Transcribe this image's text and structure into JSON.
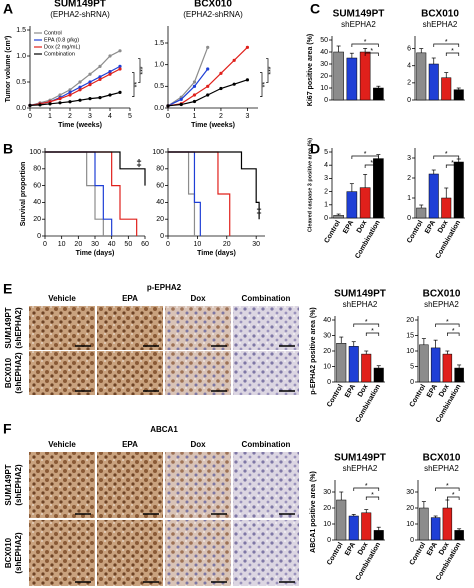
{
  "panels": [
    "A",
    "B",
    "C",
    "D",
    "E",
    "F"
  ],
  "images": [
    {
      "title": "p-EPHA2",
      "columns": [
        "Vehicle",
        "EPA",
        "Dox",
        "Combination"
      ],
      "rows": [
        {
          "name": "SUM149PT",
          "sub": "(shEPHA2)"
        },
        {
          "name": "BCX010",
          "sub": "(shEPHA2)"
        }
      ]
    },
    {
      "title": "ABCA1",
      "columns": [
        "Vehicle",
        "EPA",
        "Dox",
        "Combination"
      ],
      "rows": [
        {
          "name": "SUM149PT",
          "sub": "(shEPHA2)"
        },
        {
          "name": "BCX010",
          "sub": "(shEPHA2)"
        }
      ]
    }
  ],
  "chart_data": [
    {
      "type": "line",
      "title": "SUM149PT",
      "subtitle": "(EPHA2-shRNA)",
      "xlabel": "Time (weeks)",
      "ylabel": "Tumor volume (cm³)",
      "x": [
        0,
        0.5,
        1,
        1.5,
        2,
        2.5,
        3,
        3.5,
        4,
        4.5
      ],
      "series": [
        {
          "name": "Control",
          "color": "#8c8c8c",
          "values": [
            0.05,
            0.1,
            0.15,
            0.25,
            0.35,
            0.5,
            0.65,
            0.8,
            1.0,
            1.1
          ]
        },
        {
          "name": "EPA (0.8 g/kg)",
          "color": "#1f3fd6",
          "values": [
            0.05,
            0.08,
            0.12,
            0.2,
            0.3,
            0.4,
            0.5,
            0.6,
            0.7,
            0.8
          ]
        },
        {
          "name": "Dox (2 mg/mL)",
          "color": "#e0201b",
          "values": [
            0.05,
            0.08,
            0.12,
            0.18,
            0.25,
            0.35,
            0.45,
            0.55,
            0.65,
            0.75
          ]
        },
        {
          "name": "Combination",
          "color": "#000000",
          "values": [
            0.05,
            0.06,
            0.08,
            0.1,
            0.12,
            0.15,
            0.18,
            0.2,
            0.25,
            0.3
          ]
        }
      ],
      "xlim": [
        0,
        5
      ],
      "xticks": [
        0,
        1,
        2,
        3,
        4,
        5
      ],
      "ylim": [
        0,
        1.5
      ],
      "yticks": [
        {
          "value": 0,
          "label": "0.0"
        },
        0.5,
        {
          "value": 1,
          "label": "1.0"
        },
        1.5
      ],
      "annotations": [
        "**",
        "***"
      ]
    },
    {
      "type": "line",
      "title": "BCX010",
      "subtitle": "(EPHA2-shRNA)",
      "xlabel": "Time (weeks)",
      "x": [
        0,
        0.5,
        1,
        1.5,
        2,
        2.5,
        3
      ],
      "series": [
        {
          "color": "#8c8c8c",
          "values": [
            0.05,
            0.25,
            0.6,
            1.4,
            null,
            null,
            null
          ]
        },
        {
          "color": "#1f3fd6",
          "values": [
            0.05,
            0.2,
            0.5,
            0.9,
            null,
            null,
            null
          ]
        },
        {
          "color": "#e0201b",
          "values": [
            0.05,
            0.1,
            0.3,
            0.5,
            0.8,
            1.1,
            1.4
          ]
        },
        {
          "color": "#000000",
          "values": [
            0.05,
            0.08,
            0.15,
            0.3,
            0.45,
            0.55,
            0.65
          ]
        }
      ],
      "xlim": [
        0,
        3.4
      ],
      "xticks": [
        0,
        1,
        2,
        3
      ],
      "ylim": [
        0,
        1.8
      ],
      "yticks": [
        {
          "value": 0,
          "label": "0.0"
        },
        0.5,
        {
          "value": 1,
          "label": "1.0"
        },
        1.5
      ],
      "annotations": [
        "**",
        "***"
      ]
    },
    {
      "type": "step",
      "xlabel": "Time (days)",
      "ylabel": "Survival proportion",
      "series": [
        {
          "color": "#8c8c8c",
          "x": [
            0,
            20,
            25,
            30,
            35
          ],
          "values": [
            100,
            100,
            60,
            20,
            0
          ]
        },
        {
          "color": "#1f3fd6",
          "x": [
            0,
            25,
            30,
            35,
            40
          ],
          "values": [
            100,
            100,
            60,
            20,
            0
          ]
        },
        {
          "color": "#e0201b",
          "x": [
            0,
            30,
            40,
            45,
            55
          ],
          "values": [
            100,
            100,
            60,
            20,
            0
          ]
        },
        {
          "color": "#000000",
          "x": [
            0,
            35,
            45,
            60
          ],
          "values": [
            100,
            100,
            80,
            60
          ]
        }
      ],
      "xlim": [
        0,
        60
      ],
      "xticks": [
        0,
        10,
        20,
        30,
        40,
        50,
        60
      ],
      "ylim": [
        0,
        100
      ],
      "yticks": [
        0,
        20,
        40,
        60,
        80,
        100
      ],
      "annotations": [
        "‡"
      ]
    },
    {
      "type": "step",
      "xlabel": "Time (days)",
      "series": [
        {
          "color": "#8c8c8c",
          "x": [
            0,
            5,
            7,
            9
          ],
          "values": [
            100,
            100,
            50,
            0
          ]
        },
        {
          "color": "#1f3fd6",
          "x": [
            0,
            6,
            9,
            11
          ],
          "values": [
            100,
            100,
            40,
            0
          ]
        },
        {
          "color": "#e0201b",
          "x": [
            0,
            11,
            17,
            21
          ],
          "values": [
            100,
            100,
            50,
            0
          ]
        },
        {
          "color": "#000000",
          "x": [
            0,
            20,
            25,
            30,
            31
          ],
          "values": [
            100,
            100,
            80,
            40,
            20
          ]
        }
      ],
      "xlim": [
        0,
        33
      ],
      "xticks": [
        0,
        10,
        20,
        30
      ],
      "ylim": [
        0,
        100
      ],
      "yticks": [
        0,
        20,
        40,
        60,
        80,
        100
      ],
      "annotations": [
        "‡"
      ]
    },
    {
      "type": "bar",
      "title": "SUM149PT",
      "subtitle": "shEPHA2",
      "ylabel": "Ki67 positive area (%)",
      "values": [
        40,
        35,
        40,
        10
      ],
      "errors": [
        5,
        4,
        3,
        1.5
      ],
      "colors": [
        "#8c8c8c",
        "#1f3fd6",
        "#e0201b",
        "#000000"
      ],
      "ylim": [
        0,
        50
      ],
      "yticks": [
        0,
        10,
        20,
        30,
        40,
        50
      ],
      "annotations": [
        "*",
        "*"
      ]
    },
    {
      "type": "bar",
      "title": "BCX010",
      "subtitle": "shEPHA2",
      "values": [
        5.5,
        4.2,
        2.6,
        1.2
      ],
      "errors": [
        0.5,
        0.7,
        0.6,
        0.2
      ],
      "colors": [
        "#8c8c8c",
        "#1f3fd6",
        "#e0201b",
        "#000000"
      ],
      "ylim": [
        0,
        7
      ],
      "yticks": [
        0,
        2,
        4,
        6
      ],
      "annotations": [
        "*",
        "*"
      ]
    },
    {
      "type": "bar",
      "ylabel": "Cleaved caspase 3 positive area (%)",
      "categories": [
        "Control",
        "EPA",
        "Dox",
        "Combination"
      ],
      "values": [
        0.2,
        2.0,
        2.3,
        4.5
      ],
      "errors": [
        0.1,
        0.6,
        1.0,
        0.3
      ],
      "colors": [
        "#8c8c8c",
        "#1f3fd6",
        "#e0201b",
        "#000000"
      ],
      "ylim": [
        0,
        5
      ],
      "yticks": [
        0,
        1,
        2,
        3,
        4,
        5
      ],
      "annotations": [
        "*",
        "*"
      ]
    },
    {
      "type": "bar",
      "categories": [
        "Control",
        "EPA",
        "Dox",
        "Combination"
      ],
      "values": [
        0.5,
        2.2,
        1.0,
        2.8
      ],
      "errors": [
        0.15,
        0.2,
        0.5,
        0.15
      ],
      "colors": [
        "#8c8c8c",
        "#1f3fd6",
        "#e0201b",
        "#000000"
      ],
      "ylim": [
        0,
        3.3
      ],
      "yticks": [
        0,
        1,
        2,
        3
      ],
      "annotations": [
        "*",
        "*"
      ]
    },
    {
      "type": "bar",
      "title": "SUM149PT",
      "subtitle": "shEPHA2",
      "ylabel": "p-EPHA2 positive area (%)",
      "categories": [
        "Control",
        "EPA",
        "Dox",
        "Combination"
      ],
      "values": [
        25,
        23,
        18,
        9
      ],
      "errors": [
        4,
        3,
        2,
        1.5
      ],
      "colors": [
        "#8c8c8c",
        "#1f3fd6",
        "#e0201b",
        "#000000"
      ],
      "ylim": [
        0,
        40
      ],
      "yticks": [
        0,
        10,
        20,
        30,
        40
      ],
      "annotations": [
        "*",
        "*"
      ]
    },
    {
      "type": "bar",
      "title": "BCX010",
      "subtitle": "shEPHA2",
      "categories": [
        "Control",
        "EPA",
        "Dox",
        "Combination"
      ],
      "values": [
        12,
        11,
        9,
        4.5
      ],
      "errors": [
        2,
        2.5,
        1,
        1
      ],
      "colors": [
        "#8c8c8c",
        "#1f3fd6",
        "#e0201b",
        "#000000"
      ],
      "ylim": [
        0,
        20
      ],
      "yticks": [
        0,
        5,
        10,
        15,
        20
      ],
      "annotations": [
        "*",
        "*"
      ]
    },
    {
      "type": "bar",
      "title": "SUM149PT",
      "subtitle": "shEPHA2",
      "ylabel": "ABCA1 positive area (%)",
      "categories": [
        "Control",
        "EPA",
        "Dox",
        "Combination"
      ],
      "values": [
        25,
        15,
        17,
        6
      ],
      "errors": [
        5,
        1,
        2,
        2
      ],
      "colors": [
        "#8c8c8c",
        "#1f3fd6",
        "#e0201b",
        "#000000"
      ],
      "ylim": [
        0,
        35
      ],
      "yticks": [
        0,
        10,
        20,
        30
      ],
      "annotations": [
        "*",
        "*"
      ]
    },
    {
      "type": "bar",
      "title": "BCX010",
      "subtitle": "shEPHA2",
      "categories": [
        "Control",
        "EPA",
        "Dox",
        "Combination"
      ],
      "values": [
        20,
        14,
        20,
        6
      ],
      "errors": [
        4,
        1,
        5,
        1
      ],
      "colors": [
        "#8c8c8c",
        "#1f3fd6",
        "#e0201b",
        "#000000"
      ],
      "ylim": [
        0,
        35
      ],
      "yticks": [
        0,
        10,
        20,
        30
      ],
      "annotations": [
        "*",
        "*"
      ]
    }
  ]
}
